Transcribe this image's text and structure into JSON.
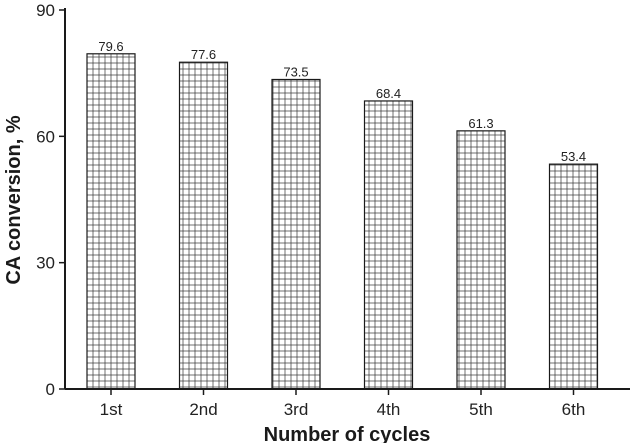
{
  "chart_data": {
    "type": "bar",
    "title": "",
    "xlabel": "Number of cycles",
    "ylabel": "CA conversion, %",
    "categories": [
      "1st",
      "2nd",
      "3rd",
      "4th",
      "5th",
      "6th"
    ],
    "values": [
      79.6,
      77.6,
      73.5,
      68.4,
      61.3,
      53.4
    ],
    "value_labels": [
      "79.6",
      "77.6",
      "73.5",
      "68.4",
      "61.3",
      "53.4"
    ],
    "ylim": [
      0,
      90
    ],
    "yticks": [
      "0",
      "30",
      "60",
      "90"
    ],
    "grid": false,
    "legend": "none",
    "bar_fill": "crosshatch",
    "colors": {
      "axis": "#1a1a1a",
      "bar_edge": "#1a1a1a",
      "hatch": "#333333",
      "background": "#ffffff"
    }
  }
}
